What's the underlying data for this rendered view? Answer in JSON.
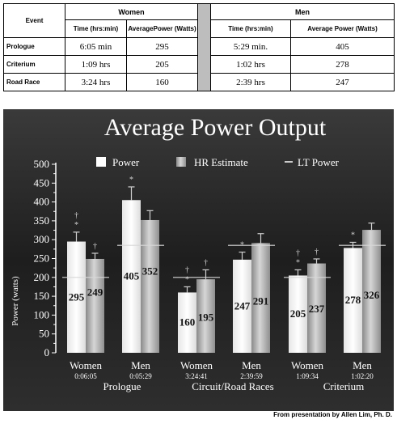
{
  "table": {
    "event_header": "Event",
    "women_header": "Women",
    "men_header": "Men",
    "col_time": "Time (hrs:min)",
    "col_power_women": "AveragePower (Watts)",
    "col_power_men": "Average Power (Watts)",
    "rows": [
      {
        "event": "Prologue",
        "w_time": "6:05 min",
        "w_power": "295",
        "m_time": "5:29 min.",
        "m_power": "405"
      },
      {
        "event": "Criterium",
        "w_time": "1:09 hrs",
        "w_power": "205",
        "m_time": "1:02 hrs",
        "m_power": "278"
      },
      {
        "event": "Road Race",
        "w_time": "3:24 hrs",
        "w_power": "160",
        "m_time": "2:39 hrs",
        "m_power": "247"
      }
    ]
  },
  "chart_data": {
    "type": "bar",
    "title": "Average Power Output",
    "ylabel": "Power (watts)",
    "ylim": [
      0,
      500
    ],
    "yticks": [
      0,
      50,
      100,
      150,
      200,
      250,
      300,
      350,
      400,
      450,
      500
    ],
    "legend": [
      "Power",
      "HR Estimate",
      "LT Power"
    ],
    "groups": [
      {
        "label": "Prologue",
        "bars": [
          {
            "sex": "Women",
            "time": "0:06:05",
            "power": 295,
            "power_err": 25,
            "hr": 249,
            "hr_err": 15,
            "lt": 200,
            "marks": {
              "power": [
                "*",
                "†"
              ],
              "hr": [
                "†"
              ]
            }
          },
          {
            "sex": "Men",
            "time": "0:05:29",
            "power": 405,
            "power_err": 35,
            "hr": 352,
            "hr_err": 25,
            "lt": 285,
            "marks": {
              "power": [
                "*"
              ],
              "hr": []
            }
          }
        ]
      },
      {
        "label": "Circuit/Road Races",
        "bars": [
          {
            "sex": "Women",
            "time": "3:24:41",
            "power": 160,
            "power_err": 15,
            "hr": 195,
            "hr_err": 25,
            "lt": 200,
            "marks": {
              "power": [
                "*",
                "†"
              ],
              "hr": [
                "†"
              ]
            }
          },
          {
            "sex": "Men",
            "time": "2:39:59",
            "power": 247,
            "power_err": 20,
            "hr": 291,
            "hr_err": 25,
            "lt": 285,
            "marks": {
              "power": [
                "*"
              ],
              "hr": []
            }
          }
        ]
      },
      {
        "label": "Criterium",
        "bars": [
          {
            "sex": "Women",
            "time": "1:09:34",
            "power": 205,
            "power_err": 15,
            "hr": 237,
            "hr_err": 12,
            "lt": 200,
            "marks": {
              "power": [
                "*",
                "†"
              ],
              "hr": [
                "†"
              ]
            }
          },
          {
            "sex": "Men",
            "time": "1:02:20",
            "power": 278,
            "power_err": 15,
            "hr": 326,
            "hr_err": 18,
            "lt": 285,
            "marks": {
              "power": [
                "*"
              ],
              "hr": []
            }
          }
        ]
      }
    ],
    "colors": {
      "background": "#2b2b2b",
      "power": "#ffffff",
      "hr": "#bdbdbd",
      "lt": "#d8d8d8",
      "text": "#ffffff"
    }
  },
  "credit": "From presentation by Allen Lim, Ph. D."
}
